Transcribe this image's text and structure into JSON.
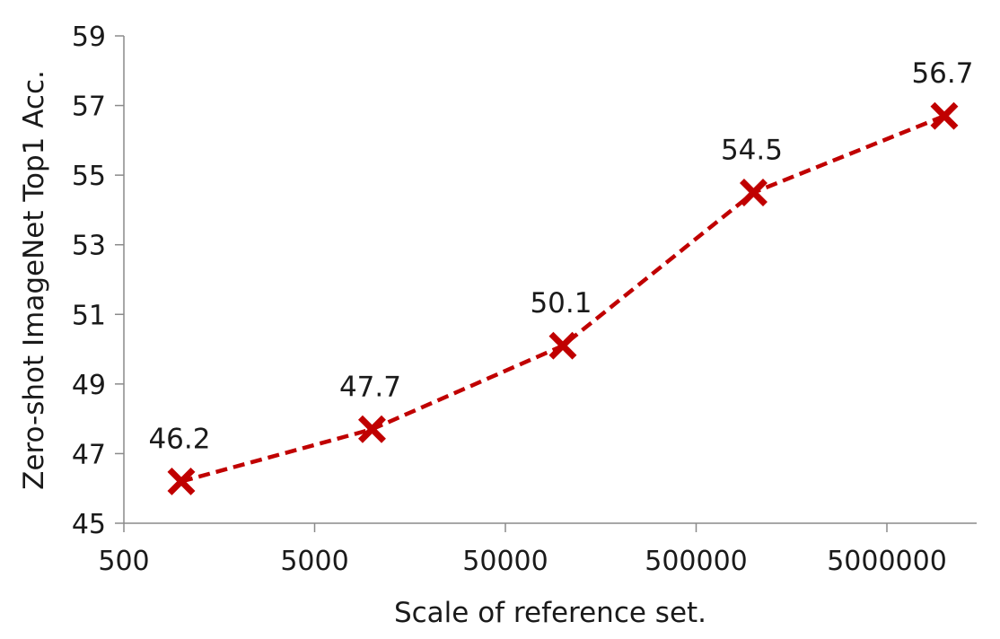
{
  "chart_data": {
    "type": "line",
    "title": "",
    "xlabel": "Scale of reference set.",
    "ylabel": "Zero-shot ImageNet Top1 Acc.",
    "x_scale": "log",
    "xlim": [
      500,
      12000000
    ],
    "ylim": [
      45,
      59
    ],
    "x_ticks": [
      500,
      5000,
      50000,
      500000,
      5000000
    ],
    "x_tick_labels": [
      "500",
      "5000",
      "50000",
      "500000",
      "5000000"
    ],
    "y_ticks": [
      45,
      47,
      49,
      51,
      53,
      55,
      57,
      59
    ],
    "y_tick_labels": [
      "45",
      "47",
      "49",
      "51",
      "53",
      "55",
      "57",
      "59"
    ],
    "grid": false,
    "series": [
      {
        "x": [
          1000,
          10000,
          100000,
          1000000,
          10000000
        ],
        "y": [
          46.2,
          47.7,
          50.1,
          54.5,
          56.7
        ],
        "labels": [
          "46.2",
          "47.7",
          "50.1",
          "54.5",
          "56.7"
        ],
        "color": "#c00000",
        "line_style": "dashed",
        "marker": "x"
      }
    ]
  }
}
